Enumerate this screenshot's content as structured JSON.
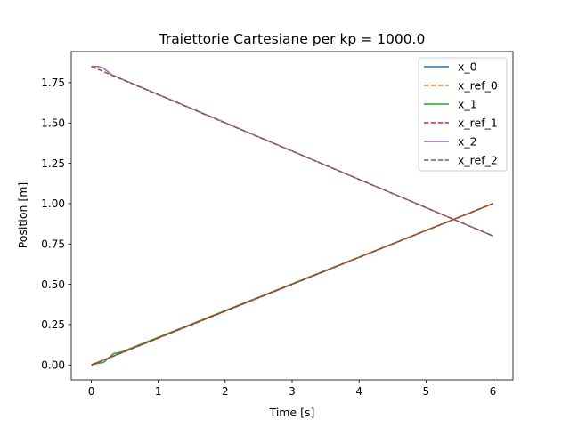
{
  "chart_data": {
    "type": "line",
    "title": "Traiettorie Cartesiane per kp = 1000.0",
    "xlabel": "Time [s]",
    "ylabel": "Position [m]",
    "xlim": [
      -0.3,
      6.3
    ],
    "ylim": [
      -0.0925,
      1.9425
    ],
    "xticks": [
      0,
      1,
      2,
      3,
      4,
      5,
      6
    ],
    "xtick_labels": [
      "0",
      "1",
      "2",
      "3",
      "4",
      "5",
      "6"
    ],
    "yticks": [
      0.0,
      0.25,
      0.5,
      0.75,
      1.0,
      1.25,
      1.5,
      1.75
    ],
    "ytick_labels": [
      "0.00",
      "0.25",
      "0.50",
      "0.75",
      "1.00",
      "1.25",
      "1.50",
      "1.75"
    ],
    "grid": false,
    "legend_position": "top-right",
    "series": [
      {
        "name": "x_0",
        "color": "#1f77b4",
        "style": "solid",
        "x": [
          0,
          0.2,
          0.4,
          6
        ],
        "y": [
          0.0,
          0.033,
          0.067,
          1.0
        ]
      },
      {
        "name": "x_ref_0",
        "color": "#ff7f0e",
        "style": "dashed",
        "x": [
          0,
          6
        ],
        "y": [
          0.0,
          1.0
        ]
      },
      {
        "name": "x_1",
        "color": "#2ca02c",
        "style": "solid",
        "x": [
          0,
          0.1,
          0.18,
          0.25,
          0.33,
          0.45,
          6
        ],
        "y": [
          0.0,
          0.01,
          0.015,
          0.04,
          0.07,
          0.08,
          1.0
        ]
      },
      {
        "name": "x_ref_1",
        "color": "#d62728",
        "style": "dashed",
        "x": [
          0,
          6
        ],
        "y": [
          0.0,
          1.0
        ]
      },
      {
        "name": "x_2",
        "color": "#9467bd",
        "style": "solid",
        "x": [
          0,
          0.1,
          0.18,
          0.24,
          0.3,
          6
        ],
        "y": [
          1.85,
          1.85,
          1.84,
          1.82,
          1.8,
          0.8
        ]
      },
      {
        "name": "x_ref_2",
        "color": "#8c564b",
        "style": "dashed",
        "x": [
          0,
          6
        ],
        "y": [
          1.85,
          0.8
        ]
      }
    ]
  }
}
